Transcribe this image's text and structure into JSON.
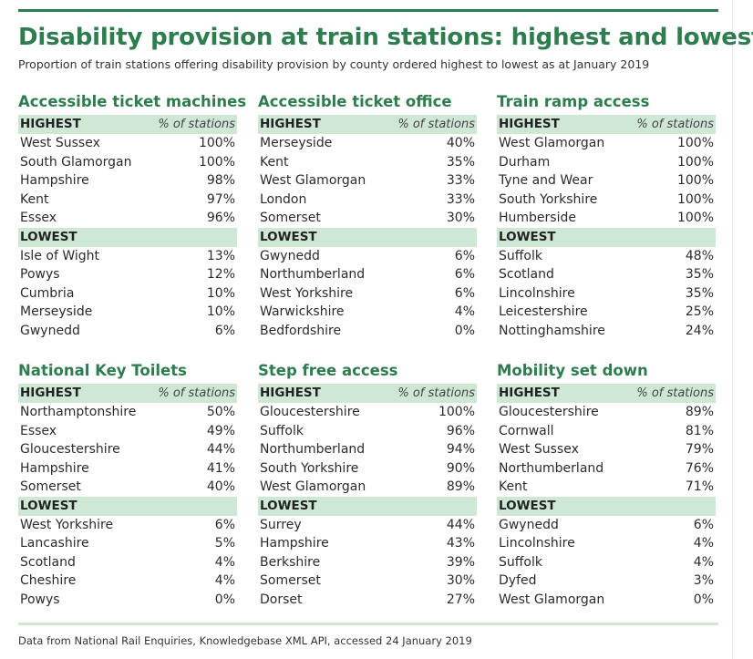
{
  "title": "Disability provision at train stations: highest and lowest",
  "subtitle": "Proportion of train stations offering disability provision by county ordered highest to lowest as at January 2019",
  "source": "Data from National Rail Enquiries, Knowledgebase XML API, accessed 24 January 2019",
  "colors": {
    "accent": "#2e7d4f",
    "header_fill": "#cfe8d6"
  },
  "sections": [
    {
      "title": "Accessible ticket machines",
      "highest_label": "HIGHEST",
      "pct_label": "% of stations",
      "lowest_label": "LOWEST",
      "highest": [
        {
          "name": "West Sussex",
          "value": "100%"
        },
        {
          "name": "South Glamorgan",
          "value": "100%"
        },
        {
          "name": "Hampshire",
          "value": "98%"
        },
        {
          "name": "Kent",
          "value": "97%"
        },
        {
          "name": "Essex",
          "value": "96%"
        }
      ],
      "lowest": [
        {
          "name": "Isle of Wight",
          "value": "13%"
        },
        {
          "name": "Powys",
          "value": "12%"
        },
        {
          "name": "Cumbria",
          "value": "10%"
        },
        {
          "name": "Merseyside",
          "value": "10%"
        },
        {
          "name": "Gwynedd",
          "value": "6%"
        }
      ]
    },
    {
      "title": "Accessible ticket office",
      "highest_label": "HIGHEST",
      "pct_label": "% of stations",
      "lowest_label": "LOWEST",
      "highest": [
        {
          "name": "Merseyside",
          "value": "40%"
        },
        {
          "name": "Kent",
          "value": "35%"
        },
        {
          "name": "West Glamorgan",
          "value": "33%"
        },
        {
          "name": "London",
          "value": "33%"
        },
        {
          "name": "Somerset",
          "value": "30%"
        }
      ],
      "lowest": [
        {
          "name": "Gwynedd",
          "value": "6%"
        },
        {
          "name": "Northumberland",
          "value": "6%"
        },
        {
          "name": "West Yorkshire",
          "value": "6%"
        },
        {
          "name": "Warwickshire",
          "value": "4%"
        },
        {
          "name": "Bedfordshire",
          "value": "0%"
        }
      ]
    },
    {
      "title": "Train ramp access",
      "highest_label": "HIGHEST",
      "pct_label": "% of stations",
      "lowest_label": "LOWEST",
      "highest": [
        {
          "name": "West Glamorgan",
          "value": "100%"
        },
        {
          "name": "Durham",
          "value": "100%"
        },
        {
          "name": "Tyne and Wear",
          "value": "100%"
        },
        {
          "name": "South Yorkshire",
          "value": "100%"
        },
        {
          "name": "Humberside",
          "value": "100%"
        }
      ],
      "lowest": [
        {
          "name": "Suffolk",
          "value": "48%"
        },
        {
          "name": "Scotland",
          "value": "35%"
        },
        {
          "name": "Lincolnshire",
          "value": "35%"
        },
        {
          "name": "Leicestershire",
          "value": "25%"
        },
        {
          "name": "Nottinghamshire",
          "value": "24%"
        }
      ]
    },
    {
      "title": "National Key Toilets",
      "highest_label": "HIGHEST",
      "pct_label": "% of stations",
      "lowest_label": "LOWEST",
      "highest": [
        {
          "name": "Northamptonshire",
          "value": "50%"
        },
        {
          "name": "Essex",
          "value": "49%"
        },
        {
          "name": "Gloucestershire",
          "value": "44%"
        },
        {
          "name": "Hampshire",
          "value": "41%"
        },
        {
          "name": "Somerset",
          "value": "40%"
        }
      ],
      "lowest": [
        {
          "name": "West Yorkshire",
          "value": "6%"
        },
        {
          "name": "Lancashire",
          "value": "5%"
        },
        {
          "name": "Scotland",
          "value": "4%"
        },
        {
          "name": "Cheshire",
          "value": "4%"
        },
        {
          "name": "Powys",
          "value": "0%"
        }
      ]
    },
    {
      "title": "Step free access",
      "highest_label": "HIGHEST",
      "pct_label": "% of stations",
      "lowest_label": "LOWEST",
      "highest": [
        {
          "name": "Gloucestershire",
          "value": "100%"
        },
        {
          "name": "Suffolk",
          "value": "96%"
        },
        {
          "name": "Northumberland",
          "value": "94%"
        },
        {
          "name": "South Yorkshire",
          "value": "90%"
        },
        {
          "name": "West Glamorgan",
          "value": "89%"
        }
      ],
      "lowest": [
        {
          "name": "Surrey",
          "value": "44%"
        },
        {
          "name": "Hampshire",
          "value": "43%"
        },
        {
          "name": "Berkshire",
          "value": "39%"
        },
        {
          "name": "Somerset",
          "value": "30%"
        },
        {
          "name": "Dorset",
          "value": "27%"
        }
      ]
    },
    {
      "title": "Mobility set down",
      "highest_label": "HIGHEST",
      "pct_label": "% of stations",
      "lowest_label": "LOWEST",
      "highest": [
        {
          "name": "Gloucestershire",
          "value": "89%"
        },
        {
          "name": "Cornwall",
          "value": "81%"
        },
        {
          "name": "West Sussex",
          "value": "79%"
        },
        {
          "name": "Northumberland",
          "value": "76%"
        },
        {
          "name": "Kent",
          "value": "71%"
        }
      ],
      "lowest": [
        {
          "name": "Gwynedd",
          "value": "6%"
        },
        {
          "name": "Lincolnshire",
          "value": "4%"
        },
        {
          "name": "Suffolk",
          "value": "4%"
        },
        {
          "name": "Dyfed",
          "value": "3%"
        },
        {
          "name": "West Glamorgan",
          "value": "0%"
        }
      ]
    }
  ]
}
